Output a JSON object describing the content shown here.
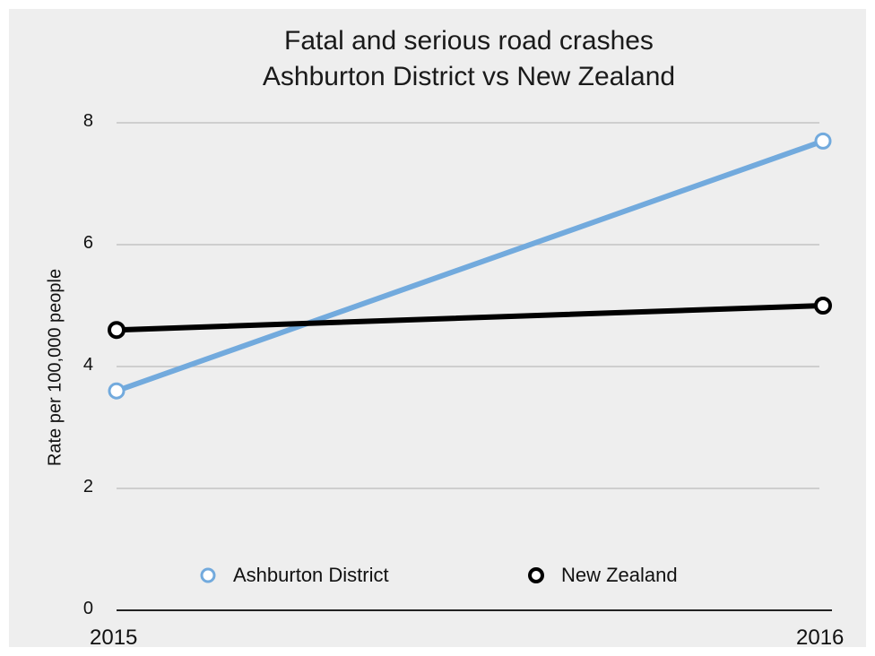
{
  "chart_data": {
    "type": "line",
    "title_lines": [
      "Fatal and serious road crashes",
      "Ashburton District vs New Zealand"
    ],
    "xlabel": "",
    "ylabel": "Rate per 100,000 people",
    "x": [
      "2015",
      "2016"
    ],
    "ylim": [
      0,
      8
    ],
    "yticks": [
      "0",
      "2",
      "4",
      "6",
      "8"
    ],
    "grid": true,
    "legend_position": "bottom",
    "series": [
      {
        "name": "Ashburton District",
        "values": [
          3.6,
          7.7
        ],
        "color": "#72aadd"
      },
      {
        "name": "New Zealand",
        "values": [
          4.6,
          5.0
        ],
        "color": "#000000"
      }
    ]
  }
}
